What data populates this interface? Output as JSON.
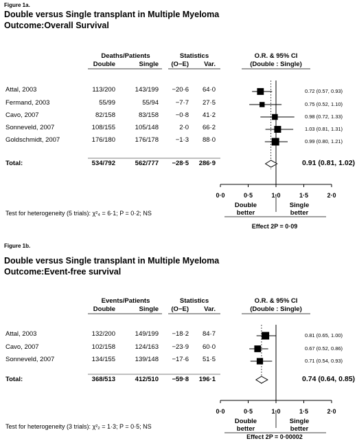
{
  "chart_data": [
    {
      "type": "forest",
      "figure_label": "Figure 1a.",
      "title": "Double versus Single transplant in Multiple Myeloma",
      "subtitle": "Outcome:Overall Survival",
      "group_header": "Deaths/Patients",
      "col_double": "Double",
      "col_single": "Single",
      "stats_header": "Statistics",
      "col_oe": "(O−E)",
      "col_var": "Var.",
      "or_header": "O.R. & 95% CI",
      "or_subheader": "(Double : Single)",
      "x_ticks": [
        "0·0",
        "0·5",
        "1·0",
        "1·5",
        "2·0"
      ],
      "xlim": [
        0,
        2
      ],
      "reference_line": 1.0,
      "left_label": [
        "Double",
        "better"
      ],
      "right_label": [
        "Single",
        "better"
      ],
      "studies": [
        {
          "name": "Attal, 2003",
          "double": "113/200",
          "single": "143/199",
          "oe": "−20·6",
          "var": "64·0",
          "ci_text": "0.72 (0.57, 0.93)",
          "or": 0.72,
          "lo": 0.57,
          "hi": 0.93
        },
        {
          "name": "Fermand, 2003",
          "double": "55/99",
          "single": "55/94",
          "oe": "−7·7",
          "var": "27·5",
          "ci_text": "0.75 (0.52, 1.10)",
          "or": 0.75,
          "lo": 0.52,
          "hi": 1.1
        },
        {
          "name": "Cavo, 2007",
          "double": "82/158",
          "single": "83/158",
          "oe": "−0·8",
          "var": "41·2",
          "ci_text": "0.98 (0.72, 1.33)",
          "or": 0.98,
          "lo": 0.72,
          "hi": 1.33
        },
        {
          "name": "Sonneveld, 2007",
          "double": "108/155",
          "single": "105/148",
          "oe": "2·0",
          "var": "66·2",
          "ci_text": "1.03 (0.81, 1.31)",
          "or": 1.03,
          "lo": 0.81,
          "hi": 1.31
        },
        {
          "name": "Goldschmidt, 2007",
          "double": "176/180",
          "single": "176/178",
          "oe": "−1·3",
          "var": "88·0",
          "ci_text": "0.99 (0.80, 1.21)",
          "or": 0.99,
          "lo": 0.8,
          "hi": 1.21
        }
      ],
      "total": {
        "name": "Total:",
        "double": "534/792",
        "single": "562/777",
        "oe": "−28·5",
        "var": "286·9",
        "ci_text": "0.91 (0.81, 1.02)",
        "or": 0.91,
        "lo": 0.81,
        "hi": 1.02
      },
      "heterogeneity": "Test for heterogeneity (5 trials): χ²₄ = 6·1; P = 0·2; NS",
      "effect": "Effect 2P = 0·09"
    },
    {
      "type": "forest",
      "figure_label": "Figure 1b.",
      "title": "Double versus Single transplant in Multiple Myeloma",
      "subtitle": "Outcome:Event-free survival",
      "group_header": "Events/Patients",
      "col_double": "Double",
      "col_single": "Single",
      "stats_header": "Statistics",
      "col_oe": "(O−E)",
      "col_var": "Var.",
      "or_header": "O.R. & 95% CI",
      "or_subheader": "(Double : Single)",
      "x_ticks": [
        "0·0",
        "0·5",
        "1·0",
        "1·5",
        "2·0"
      ],
      "xlim": [
        0,
        2
      ],
      "reference_line": 1.0,
      "left_label": [
        "Double",
        "better"
      ],
      "right_label": [
        "Single",
        "better"
      ],
      "studies": [
        {
          "name": "Attal, 2003",
          "double": "132/200",
          "single": "149/199",
          "oe": "−18·2",
          "var": "84·7",
          "ci_text": "0.81 (0.65, 1.00)",
          "or": 0.81,
          "lo": 0.65,
          "hi": 1.0
        },
        {
          "name": "Cavo, 2007",
          "double": "102/158",
          "single": "124/163",
          "oe": "−23·9",
          "var": "60·0",
          "ci_text": "0.67 (0.52, 0.86)",
          "or": 0.67,
          "lo": 0.52,
          "hi": 0.86
        },
        {
          "name": "Sonneveld, 2007",
          "double": "134/155",
          "single": "139/148",
          "oe": "−17·6",
          "var": "51·5",
          "ci_text": "0.71 (0.54, 0.93)",
          "or": 0.71,
          "lo": 0.54,
          "hi": 0.93
        }
      ],
      "total": {
        "name": "Total:",
        "double": "368/513",
        "single": "412/510",
        "oe": "−59·8",
        "var": "196·1",
        "ci_text": "0.74 (0.64, 0.85)",
        "or": 0.74,
        "lo": 0.64,
        "hi": 0.85
      },
      "heterogeneity": "Test for heterogeneity (3 trials): χ²₂ = 1·3; P = 0·5; NS",
      "effect": "Effect 2P = 0·00002"
    }
  ]
}
